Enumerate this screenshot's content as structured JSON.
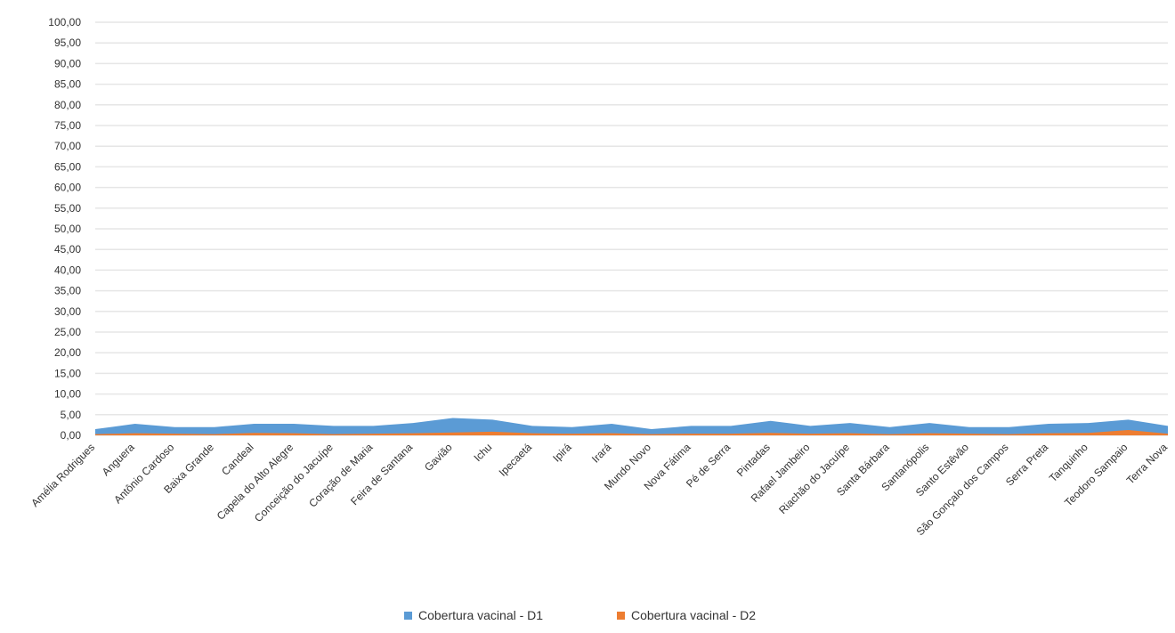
{
  "chart_data": {
    "type": "area",
    "ylim": [
      0,
      100
    ],
    "yticks": [
      "0,00",
      "5,00",
      "10,00",
      "15,00",
      "20,00",
      "25,00",
      "30,00",
      "35,00",
      "40,00",
      "45,00",
      "50,00",
      "55,00",
      "60,00",
      "65,00",
      "70,00",
      "75,00",
      "80,00",
      "85,00",
      "90,00",
      "95,00",
      "100,00"
    ],
    "grid": true,
    "legend_position": "bottom",
    "categories": [
      "Amélia Rodrigues",
      "Anguera",
      "Antônio Cardoso",
      "Baixa Grande",
      "Candeal",
      "Capela do Alto Alegre",
      "Conceição do Jacuípe",
      "Coração de Maria",
      "Feira de Santana",
      "Gavião",
      "Ichu",
      "Ipecaetá",
      "Ipirá",
      "Irará",
      "Mundo Novo",
      "Nova Fátima",
      "Pé de Serra",
      "Pintadas",
      "Rafael Jambeiro",
      "Riachão do Jacuípe",
      "Santa Bárbara",
      "Santanópolis",
      "Santo Estêvão",
      "São Gonçalo dos Campos",
      "Serra Preta",
      "Tanquinho",
      "Teodoro Sampaio",
      "Terra Nova"
    ],
    "series": [
      {
        "name": "Cobertura vacinal - D1",
        "color": "#5b9bd5",
        "values": [
          1.5,
          2.8,
          2.0,
          2.0,
          2.8,
          2.8,
          2.3,
          2.3,
          3.0,
          4.2,
          3.8,
          2.3,
          2.0,
          2.8,
          1.5,
          2.3,
          2.3,
          3.5,
          2.3,
          3.0,
          2.0,
          3.0,
          2.0,
          2.0,
          2.8,
          3.0,
          3.8,
          2.3
        ]
      },
      {
        "name": "Cobertura vacinal - D2",
        "color": "#ed7d31",
        "values": [
          0.3,
          0.5,
          0.4,
          0.3,
          0.6,
          0.5,
          0.3,
          0.4,
          0.5,
          0.7,
          0.9,
          0.5,
          0.4,
          0.5,
          0.3,
          0.4,
          0.4,
          0.6,
          0.4,
          0.5,
          0.3,
          0.5,
          0.4,
          0.3,
          0.5,
          0.6,
          1.3,
          0.4
        ]
      }
    ]
  }
}
